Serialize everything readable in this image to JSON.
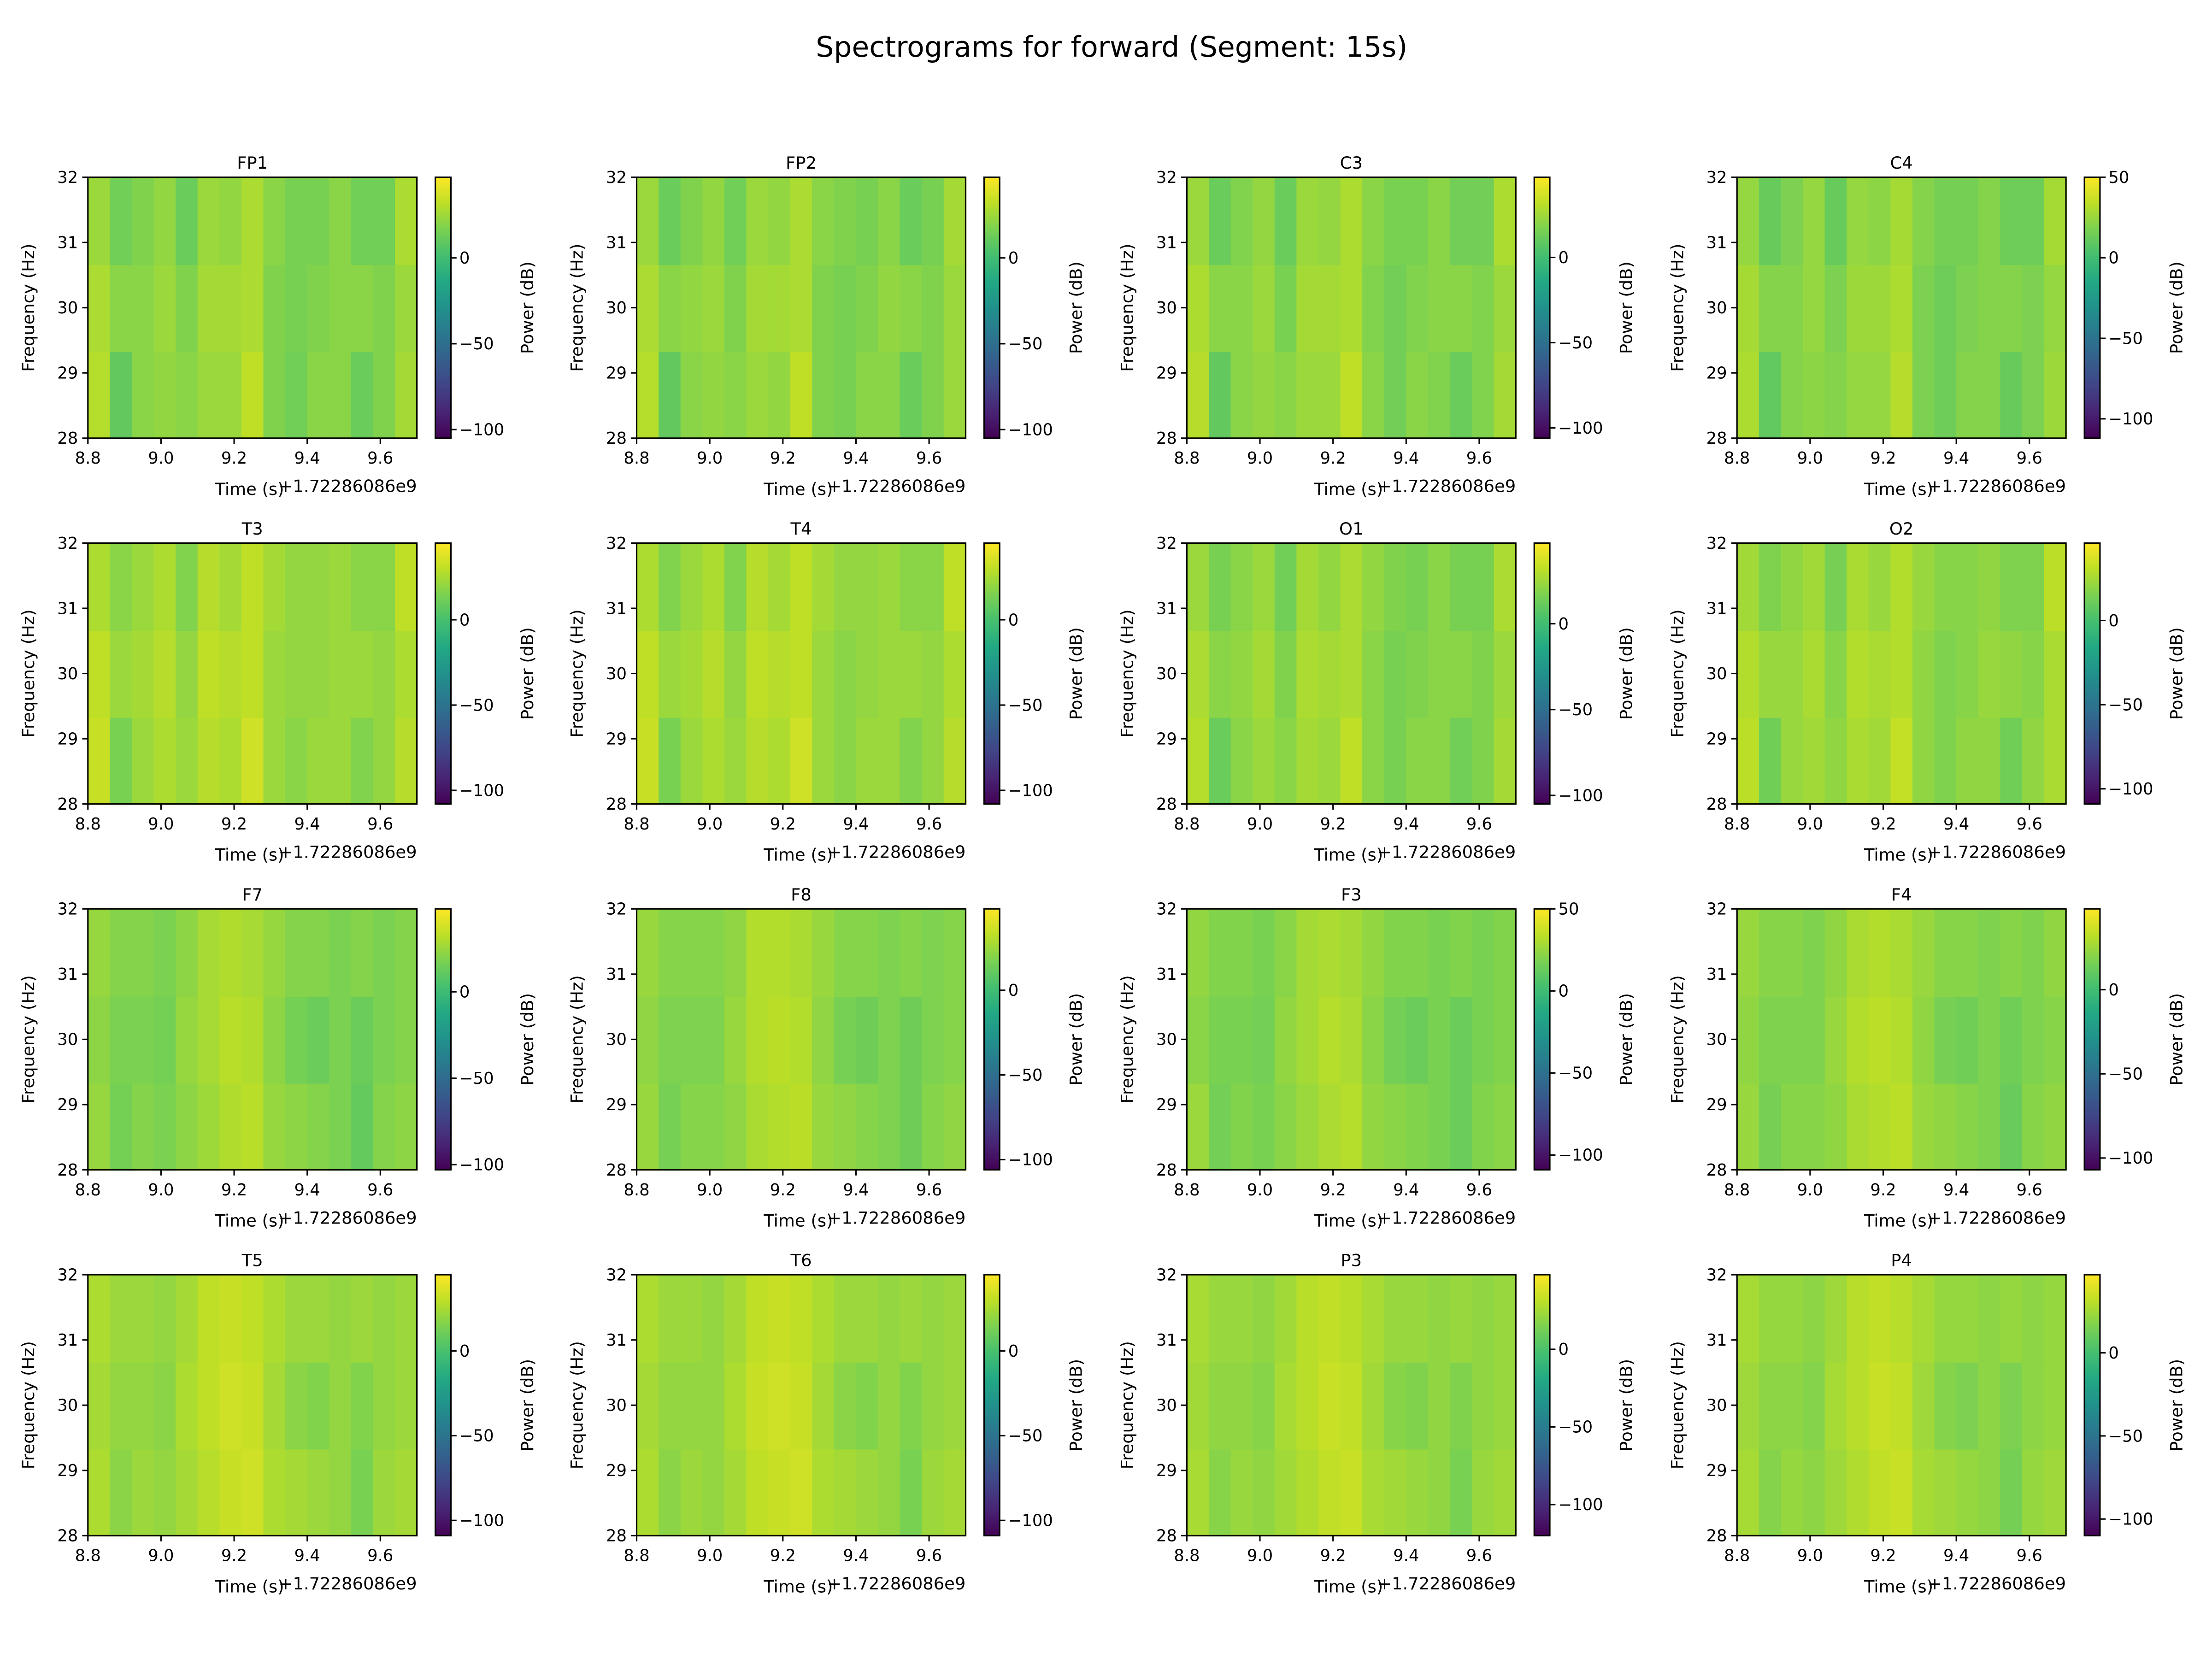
{
  "chart_data": {
    "type": "heatmap",
    "title": "Spectrograms for forward (Segment: 15s)",
    "colormap": "viridis",
    "xlabel": "Time (s)",
    "ylabel": "Frequency (Hz)",
    "x_offset_label": "+1.72286086e9",
    "colorbar_label": "Power (dB)",
    "xlim": [
      8.8,
      9.7
    ],
    "ylim": [
      28,
      32
    ],
    "xticks": [
      "8.8",
      "9.0",
      "9.2",
      "9.4",
      "9.6"
    ],
    "yticks": [
      "28",
      "29",
      "30",
      "31",
      "32"
    ],
    "grid": false,
    "time_bins": [
      8.83,
      8.89,
      8.95,
      9.01,
      9.07,
      9.13,
      9.19,
      9.25,
      9.31,
      9.37,
      9.43,
      9.49,
      9.55,
      9.61,
      9.67
    ],
    "freq_bins": [
      28.67,
      30.0,
      31.33
    ],
    "panels": [
      {
        "channel": "FP1",
        "clim": [
          -105,
          47
        ],
        "cticks": [
          0,
          -50,
          -100
        ],
        "z": [
          [
            30,
            10,
            20,
            22,
            20,
            24,
            24,
            32,
            18,
            14,
            20,
            20,
            12,
            18,
            26
          ],
          [
            28,
            20,
            20,
            24,
            18,
            26,
            26,
            28,
            18,
            16,
            18,
            20,
            20,
            18,
            24
          ],
          [
            24,
            14,
            18,
            22,
            12,
            24,
            22,
            28,
            20,
            16,
            16,
            20,
            14,
            14,
            28
          ]
        ]
      },
      {
        "channel": "FP2",
        "clim": [
          -105,
          47
        ],
        "cticks": [
          0,
          -50,
          -100
        ],
        "z": [
          [
            30,
            10,
            20,
            22,
            20,
            24,
            22,
            32,
            18,
            16,
            20,
            20,
            12,
            18,
            24
          ],
          [
            28,
            20,
            22,
            24,
            18,
            26,
            26,
            28,
            18,
            16,
            18,
            22,
            20,
            18,
            24
          ],
          [
            24,
            12,
            18,
            22,
            14,
            24,
            22,
            28,
            20,
            18,
            16,
            20,
            12,
            16,
            26
          ]
        ]
      },
      {
        "channel": "C3",
        "clim": [
          -106,
          47
        ],
        "cticks": [
          0,
          -50,
          -100
        ],
        "z": [
          [
            30,
            10,
            20,
            22,
            20,
            24,
            24,
            32,
            20,
            14,
            20,
            18,
            12,
            18,
            26
          ],
          [
            28,
            20,
            20,
            24,
            16,
            26,
            26,
            28,
            18,
            14,
            18,
            20,
            20,
            18,
            24
          ],
          [
            24,
            12,
            18,
            22,
            12,
            24,
            22,
            28,
            20,
            16,
            16,
            20,
            14,
            14,
            28
          ]
        ]
      },
      {
        "channel": "C4",
        "clim": [
          -112,
          50
        ],
        "cticks": [
          50,
          0,
          -50,
          -100
        ],
        "z": [
          [
            30,
            10,
            20,
            22,
            20,
            24,
            24,
            32,
            18,
            14,
            20,
            20,
            12,
            18,
            26
          ],
          [
            28,
            20,
            20,
            24,
            18,
            26,
            26,
            30,
            18,
            14,
            18,
            20,
            20,
            18,
            24
          ],
          [
            24,
            12,
            18,
            24,
            12,
            24,
            22,
            28,
            20,
            16,
            16,
            20,
            14,
            14,
            28
          ]
        ]
      },
      {
        "channel": "T3",
        "clim": [
          -108,
          45
        ],
        "cticks": [
          0,
          -50,
          -100
        ],
        "z": [
          [
            32,
            14,
            22,
            26,
            22,
            28,
            26,
            34,
            22,
            18,
            22,
            22,
            16,
            20,
            28
          ],
          [
            30,
            22,
            24,
            28,
            20,
            30,
            28,
            30,
            22,
            20,
            20,
            22,
            22,
            20,
            26
          ],
          [
            26,
            18,
            22,
            26,
            16,
            28,
            24,
            30,
            24,
            20,
            20,
            22,
            18,
            18,
            30
          ]
        ]
      },
      {
        "channel": "T4",
        "clim": [
          -108,
          45
        ],
        "cticks": [
          0,
          -50,
          -100
        ],
        "z": [
          [
            32,
            14,
            22,
            26,
            22,
            28,
            26,
            34,
            22,
            18,
            22,
            22,
            16,
            20,
            28
          ],
          [
            30,
            22,
            24,
            28,
            20,
            30,
            28,
            30,
            22,
            18,
            20,
            22,
            22,
            20,
            26
          ],
          [
            26,
            16,
            22,
            26,
            16,
            28,
            24,
            30,
            24,
            20,
            20,
            22,
            18,
            18,
            30
          ]
        ]
      },
      {
        "channel": "O1",
        "clim": [
          -105,
          47
        ],
        "cticks": [
          0,
          -50,
          -100
        ],
        "z": [
          [
            30,
            12,
            20,
            24,
            20,
            26,
            24,
            32,
            20,
            16,
            20,
            20,
            14,
            18,
            26
          ],
          [
            28,
            20,
            22,
            26,
            18,
            28,
            26,
            28,
            20,
            16,
            18,
            20,
            20,
            18,
            24
          ],
          [
            24,
            16,
            20,
            24,
            14,
            26,
            22,
            28,
            22,
            18,
            16,
            20,
            16,
            16,
            28
          ]
        ]
      },
      {
        "channel": "O2",
        "clim": [
          -109,
          46
        ],
        "cticks": [
          0,
          -50,
          -100
        ],
        "z": [
          [
            30,
            12,
            22,
            24,
            20,
            26,
            24,
            32,
            20,
            16,
            20,
            20,
            12,
            20,
            26
          ],
          [
            28,
            22,
            22,
            26,
            18,
            28,
            26,
            28,
            20,
            16,
            18,
            22,
            20,
            18,
            26
          ],
          [
            24,
            16,
            20,
            24,
            14,
            26,
            22,
            28,
            22,
            18,
            18,
            20,
            16,
            16,
            30
          ]
        ]
      },
      {
        "channel": "F7",
        "clim": [
          -103,
          48
        ],
        "cticks": [
          0,
          -50,
          -100
        ],
        "z": [
          [
            24,
            16,
            20,
            18,
            22,
            26,
            30,
            32,
            24,
            22,
            20,
            18,
            12,
            20,
            22
          ],
          [
            22,
            18,
            18,
            16,
            24,
            28,
            32,
            30,
            22,
            16,
            14,
            18,
            14,
            18,
            20
          ],
          [
            24,
            20,
            20,
            18,
            22,
            28,
            30,
            28,
            24,
            20,
            20,
            18,
            20,
            18,
            20
          ]
        ]
      },
      {
        "channel": "F8",
        "clim": [
          -106,
          48
        ],
        "cticks": [
          0,
          -50,
          -100
        ],
        "z": [
          [
            24,
            16,
            20,
            20,
            22,
            28,
            30,
            32,
            24,
            22,
            20,
            18,
            14,
            20,
            22
          ],
          [
            22,
            18,
            18,
            18,
            24,
            30,
            32,
            30,
            22,
            16,
            14,
            18,
            14,
            18,
            20
          ],
          [
            24,
            20,
            20,
            20,
            22,
            30,
            30,
            28,
            24,
            20,
            20,
            18,
            20,
            18,
            20
          ]
        ]
      },
      {
        "channel": "F3",
        "clim": [
          -109,
          50
        ],
        "cticks": [
          50,
          0,
          -50,
          -100
        ],
        "z": [
          [
            26,
            16,
            20,
            18,
            22,
            26,
            30,
            32,
            24,
            22,
            20,
            18,
            14,
            20,
            22
          ],
          [
            22,
            18,
            18,
            16,
            24,
            28,
            32,
            30,
            22,
            16,
            14,
            18,
            14,
            18,
            20
          ],
          [
            24,
            20,
            20,
            18,
            22,
            28,
            30,
            28,
            24,
            20,
            20,
            18,
            20,
            18,
            20
          ]
        ]
      },
      {
        "channel": "F4",
        "clim": [
          -107,
          48
        ],
        "cticks": [
          0,
          -50,
          -100
        ],
        "z": [
          [
            24,
            16,
            20,
            20,
            22,
            28,
            30,
            32,
            24,
            22,
            20,
            18,
            12,
            20,
            22
          ],
          [
            22,
            18,
            18,
            18,
            24,
            30,
            32,
            30,
            22,
            16,
            14,
            18,
            14,
            18,
            20
          ],
          [
            24,
            20,
            20,
            18,
            22,
            28,
            30,
            28,
            24,
            20,
            20,
            18,
            20,
            18,
            22
          ]
        ]
      },
      {
        "channel": "T5",
        "clim": [
          -109,
          45
        ],
        "cticks": [
          0,
          -50,
          -100
        ],
        "z": [
          [
            26,
            18,
            22,
            20,
            24,
            28,
            32,
            34,
            26,
            24,
            22,
            20,
            14,
            22,
            24
          ],
          [
            24,
            20,
            20,
            18,
            26,
            30,
            34,
            32,
            24,
            18,
            16,
            20,
            16,
            20,
            22
          ],
          [
            26,
            22,
            22,
            20,
            24,
            30,
            32,
            30,
            26,
            22,
            22,
            20,
            22,
            20,
            22
          ]
        ]
      },
      {
        "channel": "T6",
        "clim": [
          -109,
          45
        ],
        "cticks": [
          0,
          -50,
          -100
        ],
        "z": [
          [
            26,
            18,
            22,
            20,
            24,
            30,
            32,
            34,
            26,
            24,
            22,
            20,
            14,
            22,
            24
          ],
          [
            24,
            20,
            20,
            20,
            26,
            32,
            34,
            32,
            24,
            18,
            16,
            20,
            16,
            20,
            22
          ],
          [
            26,
            22,
            22,
            20,
            24,
            30,
            32,
            30,
            26,
            22,
            22,
            20,
            22,
            20,
            22
          ]
        ]
      },
      {
        "channel": "P3",
        "clim": [
          -120,
          48
        ],
        "cticks": [
          0,
          -50,
          -100
        ],
        "z": [
          [
            26,
            18,
            22,
            20,
            24,
            28,
            32,
            34,
            26,
            24,
            22,
            20,
            14,
            22,
            24
          ],
          [
            24,
            20,
            20,
            18,
            26,
            30,
            34,
            32,
            24,
            18,
            16,
            20,
            16,
            20,
            22
          ],
          [
            26,
            22,
            22,
            20,
            24,
            30,
            32,
            30,
            26,
            22,
            22,
            20,
            22,
            20,
            22
          ]
        ]
      },
      {
        "channel": "P4",
        "clim": [
          -110,
          47
        ],
        "cticks": [
          0,
          -50,
          -100
        ],
        "z": [
          [
            26,
            18,
            22,
            20,
            24,
            28,
            32,
            34,
            26,
            24,
            22,
            20,
            14,
            22,
            24
          ],
          [
            24,
            20,
            20,
            18,
            26,
            30,
            34,
            32,
            24,
            18,
            16,
            20,
            16,
            20,
            22
          ],
          [
            26,
            22,
            22,
            20,
            24,
            30,
            32,
            30,
            26,
            22,
            22,
            20,
            22,
            20,
            22
          ]
        ]
      }
    ]
  }
}
